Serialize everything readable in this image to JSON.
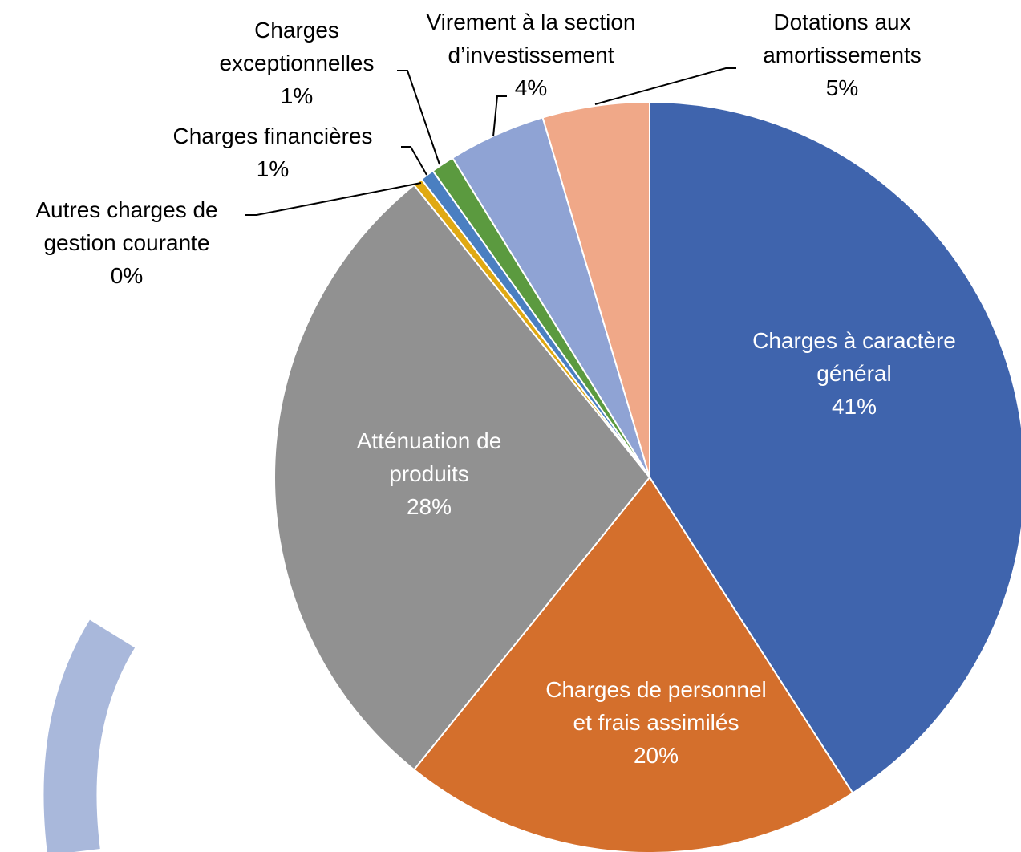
{
  "chart_data": {
    "type": "pie",
    "categories": [
      "Charges à caractère général",
      "Charges de personnel et frais assimilés",
      "Atténuation de produits",
      "Autres charges de gestion courante",
      "Charges financières",
      "Charges exceptionnelles",
      "Virement à la section d’investissement",
      "Dotations aux amortissements"
    ],
    "values": [
      40.9,
      19.9,
      28.4,
      0.4,
      0.6,
      1.0,
      4.2,
      4.6
    ],
    "value_labels": [
      "41%",
      "20%",
      "28%",
      "0%",
      "1%",
      "1%",
      "4%",
      "5%"
    ],
    "colors": [
      "#3f64ad",
      "#d46f2c",
      "#919191",
      "#e0a912",
      "#4a7fc1",
      "#5b9a3f",
      "#8fa3d4",
      "#f0a888"
    ]
  }
}
